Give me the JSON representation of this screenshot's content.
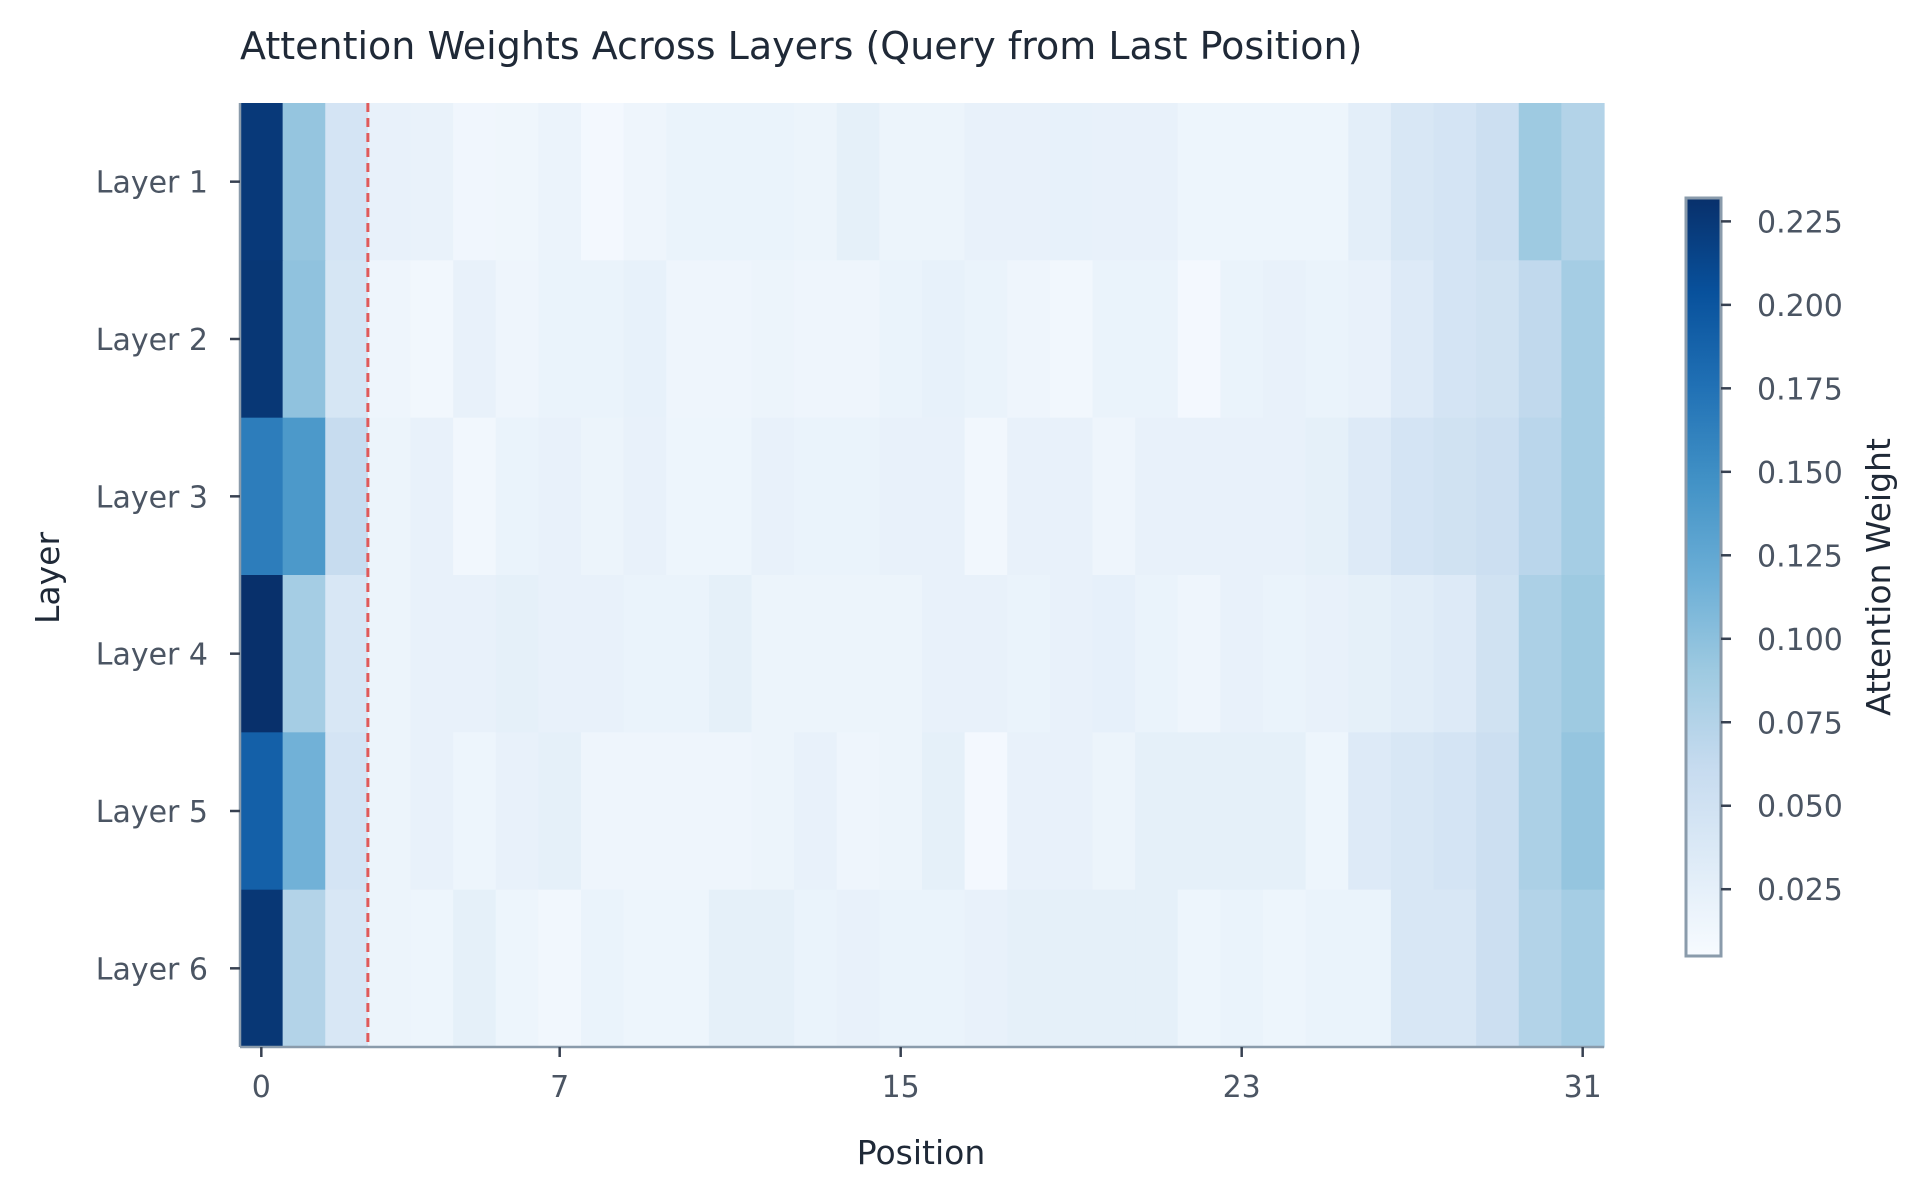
{
  "chart_data": {
    "type": "heatmap",
    "title": "Attention Weights Across Layers (Query from Last Position)",
    "xlabel": "Position",
    "ylabel": "Layer",
    "colorbar_label": "Attention Weight",
    "colormap": "Blues",
    "rows": [
      "Layer 1",
      "Layer 2",
      "Layer 3",
      "Layer 4",
      "Layer 5",
      "Layer 6"
    ],
    "x": [
      0,
      1,
      2,
      3,
      4,
      5,
      6,
      7,
      8,
      9,
      10,
      11,
      12,
      13,
      14,
      15,
      16,
      17,
      18,
      19,
      20,
      21,
      22,
      23,
      24,
      25,
      26,
      27,
      28,
      29,
      30,
      31
    ],
    "xticks": [
      0,
      7,
      15,
      23,
      31
    ],
    "colorbar_ticks": [
      0.025,
      0.05,
      0.075,
      0.1,
      0.125,
      0.15,
      0.175,
      0.2,
      0.225
    ],
    "vmin": 0.005,
    "vmax": 0.232,
    "vline": {
      "x": 2.5,
      "color": "#e05a5a",
      "style": "dashed"
    },
    "values": [
      [
        0.224,
        0.095,
        0.045,
        0.022,
        0.021,
        0.013,
        0.014,
        0.019,
        0.01,
        0.015,
        0.02,
        0.02,
        0.02,
        0.018,
        0.025,
        0.018,
        0.018,
        0.022,
        0.022,
        0.023,
        0.022,
        0.022,
        0.016,
        0.016,
        0.016,
        0.016,
        0.028,
        0.04,
        0.045,
        0.055,
        0.09,
        0.075
      ],
      [
        0.226,
        0.098,
        0.043,
        0.015,
        0.012,
        0.022,
        0.015,
        0.02,
        0.02,
        0.023,
        0.015,
        0.015,
        0.018,
        0.015,
        0.015,
        0.02,
        0.023,
        0.02,
        0.015,
        0.012,
        0.02,
        0.02,
        0.01,
        0.02,
        0.022,
        0.02,
        0.022,
        0.035,
        0.045,
        0.05,
        0.065,
        0.085
      ],
      [
        0.165,
        0.14,
        0.06,
        0.018,
        0.022,
        0.012,
        0.02,
        0.022,
        0.018,
        0.022,
        0.016,
        0.016,
        0.022,
        0.02,
        0.02,
        0.022,
        0.022,
        0.012,
        0.022,
        0.022,
        0.015,
        0.022,
        0.022,
        0.022,
        0.022,
        0.025,
        0.035,
        0.045,
        0.05,
        0.055,
        0.07,
        0.085
      ],
      [
        0.232,
        0.085,
        0.04,
        0.018,
        0.022,
        0.022,
        0.025,
        0.022,
        0.022,
        0.02,
        0.02,
        0.025,
        0.018,
        0.018,
        0.018,
        0.018,
        0.022,
        0.022,
        0.02,
        0.022,
        0.024,
        0.02,
        0.015,
        0.022,
        0.02,
        0.022,
        0.025,
        0.03,
        0.035,
        0.05,
        0.08,
        0.09
      ],
      [
        0.19,
        0.115,
        0.045,
        0.018,
        0.022,
        0.016,
        0.022,
        0.025,
        0.015,
        0.015,
        0.015,
        0.015,
        0.018,
        0.022,
        0.015,
        0.018,
        0.025,
        0.01,
        0.022,
        0.022,
        0.018,
        0.025,
        0.025,
        0.025,
        0.025,
        0.016,
        0.035,
        0.04,
        0.045,
        0.055,
        0.08,
        0.095
      ],
      [
        0.226,
        0.075,
        0.04,
        0.018,
        0.016,
        0.025,
        0.016,
        0.012,
        0.02,
        0.016,
        0.016,
        0.025,
        0.025,
        0.02,
        0.022,
        0.02,
        0.02,
        0.022,
        0.025,
        0.025,
        0.025,
        0.025,
        0.016,
        0.02,
        0.016,
        0.02,
        0.02,
        0.04,
        0.04,
        0.055,
        0.075,
        0.085
      ]
    ]
  }
}
